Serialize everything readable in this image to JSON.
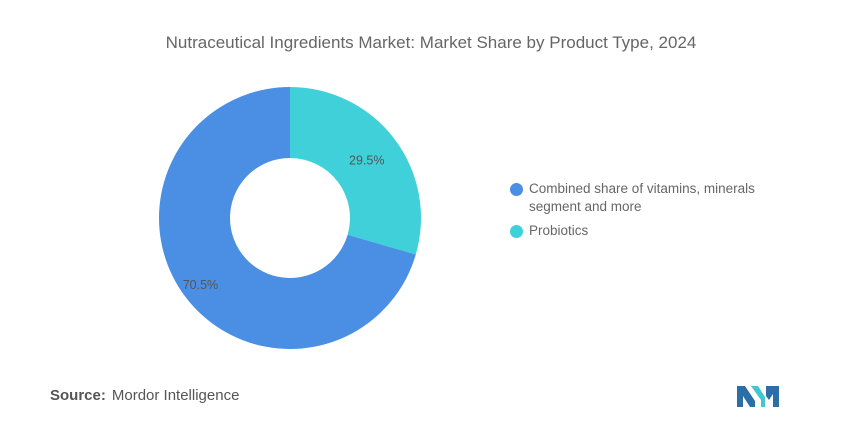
{
  "colors": {
    "vitamins": "#4a8fe3",
    "probiotics": "#3fd0d9",
    "title": "#666666",
    "logo_dark": "#2b6ea8",
    "logo_light": "#41c6d2"
  },
  "source": {
    "label": "Source:",
    "name": "Mordor Intelligence"
  },
  "logo": {
    "icon": "mordor-logo-icon"
  },
  "chart_data": {
    "type": "pie",
    "donut": true,
    "title": "Nutraceutical Ingredients Market: Market Share by Product Type, 2024",
    "legend_position": "right",
    "slices": [
      {
        "name": "Probiotics",
        "value": 29.5,
        "label": "29.5%",
        "color": "#3fd0d9"
      },
      {
        "name": "Combined share of vitamins, minerals segment and more",
        "value": 70.5,
        "label": "70.5%",
        "color": "#4a8fe3"
      }
    ],
    "legend": [
      {
        "line1": "Combined share of vitamins, minerals",
        "line2": "segment and more",
        "color": "#4a8fe3"
      },
      {
        "line1": "Probiotics",
        "color": "#3fd0d9"
      }
    ]
  }
}
